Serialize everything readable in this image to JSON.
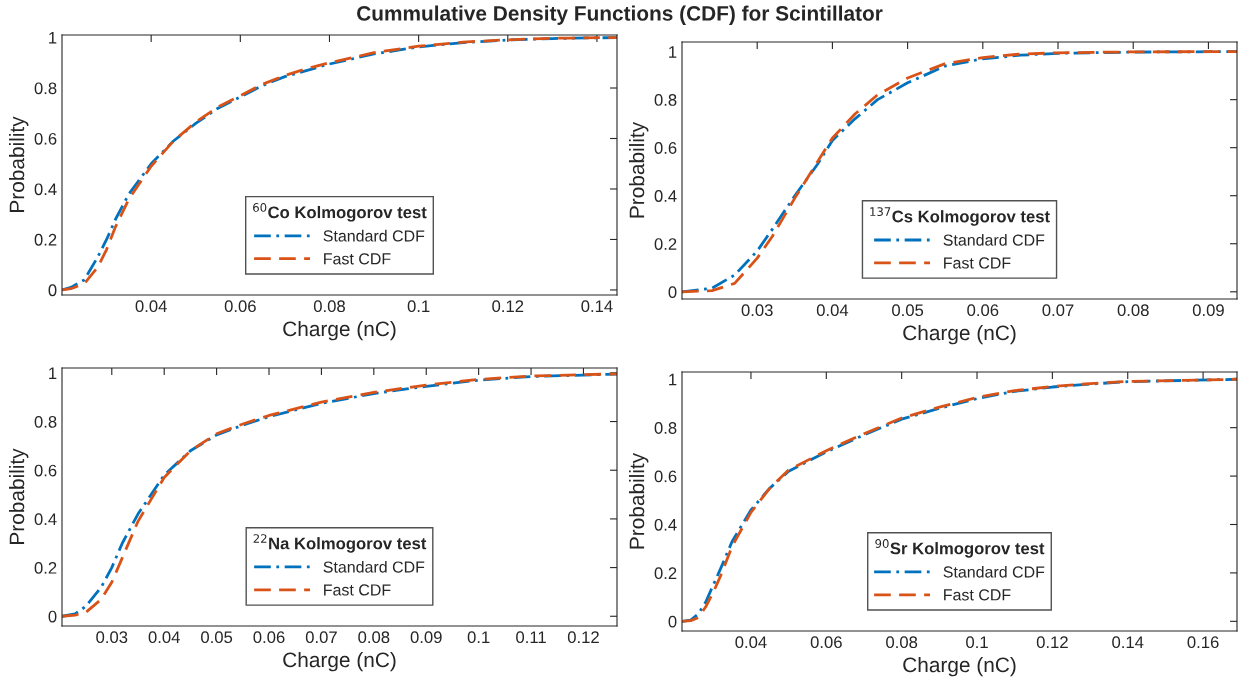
{
  "chart_data": [
    {
      "type": "line",
      "title": "Cummulative Density Functions (CDF) for Scintillator",
      "xlabel": "Charge (nC)",
      "ylabel": "Probability",
      "legend_title": "$^{60}$Co Kolmogorov test",
      "legend": "bottom",
      "grid": false,
      "xlim": [
        0.02,
        0.1445
      ],
      "ylim": [
        -0.02,
        1.01
      ],
      "xticks": [
        0.04,
        0.06,
        0.08,
        0.1,
        0.12,
        0.14
      ],
      "yticks": [
        0,
        0.2,
        0.4,
        0.6,
        0.8,
        1
      ],
      "series": [
        {
          "name": "Standard CDF",
          "color": "#0072bd",
          "line_style": "dashdot",
          "x": [
            0.02,
            0.022,
            0.025,
            0.028,
            0.03,
            0.032,
            0.035,
            0.04,
            0.045,
            0.05,
            0.055,
            0.06,
            0.065,
            0.07,
            0.075,
            0.08,
            0.09,
            0.1,
            0.11,
            0.12,
            0.13,
            0.1445
          ],
          "values": [
            0.0,
            0.01,
            0.04,
            0.13,
            0.2,
            0.28,
            0.38,
            0.5,
            0.59,
            0.66,
            0.72,
            0.765,
            0.81,
            0.845,
            0.87,
            0.895,
            0.935,
            0.963,
            0.98,
            0.99,
            0.996,
            1.0
          ]
        },
        {
          "name": "Fast CDF",
          "color": "#d95319",
          "line_style": "dashed",
          "x": [
            0.02,
            0.022,
            0.025,
            0.028,
            0.03,
            0.032,
            0.035,
            0.04,
            0.045,
            0.05,
            0.055,
            0.06,
            0.065,
            0.07,
            0.075,
            0.08,
            0.09,
            0.1,
            0.11,
            0.12,
            0.13,
            0.1445
          ],
          "values": [
            0.0,
            0.005,
            0.025,
            0.09,
            0.16,
            0.25,
            0.36,
            0.49,
            0.59,
            0.665,
            0.725,
            0.77,
            0.815,
            0.85,
            0.877,
            0.9,
            0.94,
            0.966,
            0.982,
            0.991,
            0.997,
            1.0
          ]
        }
      ]
    },
    {
      "type": "line",
      "xlabel": "Charge (nC)",
      "ylabel": "Probability",
      "legend_title": "$^{137}$Cs Kolmogorov test",
      "legend": "bottom",
      "grid": false,
      "xlim": [
        0.02,
        0.0938
      ],
      "ylim": [
        -0.03,
        1.04
      ],
      "xticks": [
        0.03,
        0.04,
        0.05,
        0.06,
        0.07,
        0.08,
        0.09
      ],
      "yticks": [
        0,
        0.2,
        0.4,
        0.6,
        0.8,
        1
      ],
      "series": [
        {
          "name": "Standard CDF",
          "color": "#0072bd",
          "line_style": "dashdot",
          "x": [
            0.02,
            0.024,
            0.027,
            0.03,
            0.032,
            0.035,
            0.038,
            0.04,
            0.043,
            0.046,
            0.05,
            0.055,
            0.06,
            0.065,
            0.07,
            0.08,
            0.0938
          ],
          "values": [
            0.0,
            0.015,
            0.07,
            0.17,
            0.26,
            0.4,
            0.53,
            0.63,
            0.72,
            0.8,
            0.87,
            0.94,
            0.97,
            0.985,
            0.993,
            0.998,
            1.0
          ]
        },
        {
          "name": "Fast CDF",
          "color": "#d95319",
          "line_style": "dashed",
          "x": [
            0.02,
            0.024,
            0.027,
            0.03,
            0.032,
            0.035,
            0.038,
            0.04,
            0.043,
            0.046,
            0.05,
            0.055,
            0.06,
            0.065,
            0.07,
            0.08,
            0.0938
          ],
          "values": [
            0.0,
            0.005,
            0.035,
            0.14,
            0.23,
            0.39,
            0.54,
            0.64,
            0.74,
            0.82,
            0.89,
            0.95,
            0.975,
            0.99,
            0.995,
            0.999,
            1.0
          ]
        }
      ]
    },
    {
      "type": "line",
      "xlabel": "Charge (nC)",
      "ylabel": "Probability",
      "legend_title": "$^{22}$Na Kolmogorov test",
      "legend": "bottom",
      "grid": false,
      "xlim": [
        0.0205,
        0.1264
      ],
      "ylim": [
        -0.04,
        1.02
      ],
      "xticks": [
        0.03,
        0.04,
        0.05,
        0.06,
        0.07,
        0.08,
        0.09,
        0.1,
        0.11,
        0.12
      ],
      "yticks": [
        0,
        0.2,
        0.4,
        0.6,
        0.8,
        1
      ],
      "series": [
        {
          "name": "Standard CDF",
          "color": "#0072bd",
          "line_style": "dashdot",
          "x": [
            0.0205,
            0.023,
            0.025,
            0.028,
            0.03,
            0.032,
            0.035,
            0.04,
            0.045,
            0.05,
            0.055,
            0.06,
            0.07,
            0.08,
            0.09,
            0.1,
            0.11,
            0.1264
          ],
          "values": [
            0.0,
            0.01,
            0.04,
            0.12,
            0.2,
            0.3,
            0.42,
            0.58,
            0.68,
            0.745,
            0.785,
            0.82,
            0.875,
            0.915,
            0.945,
            0.97,
            0.985,
            0.995
          ]
        },
        {
          "name": "Fast CDF",
          "color": "#d95319",
          "line_style": "dashed",
          "x": [
            0.0205,
            0.023,
            0.025,
            0.028,
            0.03,
            0.032,
            0.035,
            0.04,
            0.045,
            0.05,
            0.055,
            0.06,
            0.07,
            0.08,
            0.09,
            0.1,
            0.11,
            0.1264
          ],
          "values": [
            0.0,
            0.005,
            0.015,
            0.07,
            0.14,
            0.24,
            0.39,
            0.57,
            0.68,
            0.75,
            0.79,
            0.825,
            0.88,
            0.92,
            0.95,
            0.973,
            0.987,
            0.996
          ]
        }
      ]
    },
    {
      "type": "line",
      "xlabel": "Charge (nC)",
      "ylabel": "Probability",
      "legend_title": "$^{90}$Sr Kolmogorov test",
      "legend": "bottom",
      "grid": false,
      "xlim": [
        0.0217,
        0.169
      ],
      "ylim": [
        -0.04,
        1.03
      ],
      "xticks": [
        0.04,
        0.06,
        0.08,
        0.1,
        0.12,
        0.14,
        0.16
      ],
      "yticks": [
        0,
        0.2,
        0.4,
        0.6,
        0.8,
        1
      ],
      "series": [
        {
          "name": "Standard CDF",
          "color": "#0072bd",
          "line_style": "dashdot",
          "x": [
            0.0217,
            0.024,
            0.026,
            0.028,
            0.03,
            0.032,
            0.035,
            0.04,
            0.045,
            0.05,
            0.06,
            0.07,
            0.08,
            0.09,
            0.1,
            0.11,
            0.12,
            0.13,
            0.14,
            0.169
          ],
          "values": [
            0.0,
            0.005,
            0.03,
            0.08,
            0.15,
            0.22,
            0.33,
            0.46,
            0.55,
            0.62,
            0.7,
            0.77,
            0.835,
            0.88,
            0.92,
            0.95,
            0.968,
            0.98,
            0.99,
            1.0
          ]
        },
        {
          "name": "Fast CDF",
          "color": "#d95319",
          "line_style": "dashed",
          "x": [
            0.0217,
            0.024,
            0.026,
            0.028,
            0.03,
            0.032,
            0.035,
            0.04,
            0.045,
            0.05,
            0.06,
            0.07,
            0.08,
            0.09,
            0.1,
            0.11,
            0.12,
            0.13,
            0.14,
            0.169
          ],
          "values": [
            0.0,
            0.003,
            0.015,
            0.06,
            0.12,
            0.19,
            0.31,
            0.45,
            0.55,
            0.625,
            0.705,
            0.775,
            0.84,
            0.885,
            0.925,
            0.953,
            0.97,
            0.982,
            0.991,
            1.0
          ]
        }
      ]
    }
  ]
}
